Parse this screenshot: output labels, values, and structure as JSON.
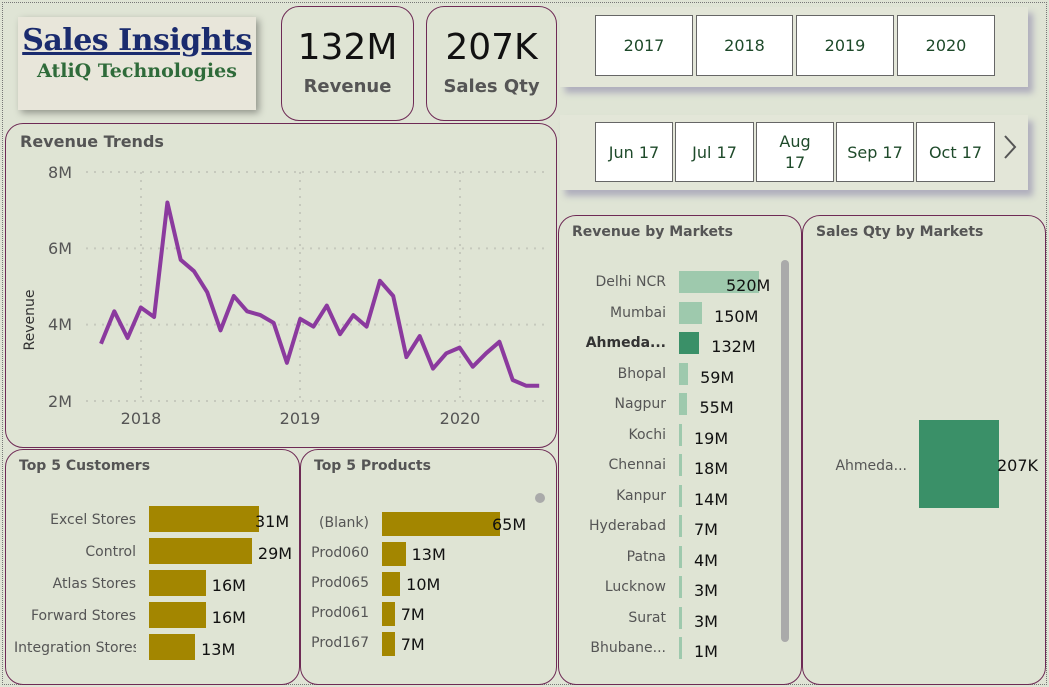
{
  "header": {
    "title": "Sales Insights",
    "subtitle": "AtliQ Technologies"
  },
  "kpis": {
    "revenue": {
      "value": "132M",
      "label": "Revenue"
    },
    "sales_qty": {
      "value": "207K",
      "label": "Sales Qty"
    }
  },
  "year_slicer": [
    "2017",
    "2018",
    "2019",
    "2020"
  ],
  "month_slicer": [
    "Jun 17",
    "Jul 17",
    "Aug 17",
    "Sep 17",
    "Oct 17"
  ],
  "revenue_trends": {
    "title": "Revenue Trends",
    "ylabel": "Revenue",
    "y_ticks": [
      "8M",
      "6M",
      "4M",
      "2M"
    ],
    "x_ticks": [
      "2018",
      "2019",
      "2020"
    ]
  },
  "revenue_by_markets": {
    "title": "Revenue by Markets",
    "rows": [
      {
        "label": "Delhi NCR",
        "value": "520M"
      },
      {
        "label": "Mumbai",
        "value": "150M"
      },
      {
        "label": "Ahmeda...",
        "value": "132M"
      },
      {
        "label": "Bhopal",
        "value": "59M"
      },
      {
        "label": "Nagpur",
        "value": "55M"
      },
      {
        "label": "Kochi",
        "value": "19M"
      },
      {
        "label": "Chennai",
        "value": "18M"
      },
      {
        "label": "Kanpur",
        "value": "14M"
      },
      {
        "label": "Hyderabad",
        "value": "7M"
      },
      {
        "label": "Patna",
        "value": "4M"
      },
      {
        "label": "Lucknow",
        "value": "3M"
      },
      {
        "label": "Surat",
        "value": "3M"
      },
      {
        "label": "Bhubane...",
        "value": "1M"
      }
    ]
  },
  "sales_qty_by_markets": {
    "title": "Sales Qty by Markets",
    "rows": [
      {
        "label": "Ahmeda...",
        "value": "207K"
      }
    ]
  },
  "top_customers": {
    "title": "Top 5 Customers",
    "rows": [
      {
        "label": "Excel Stores",
        "value": "31M"
      },
      {
        "label": "Control",
        "value": "29M"
      },
      {
        "label": "Atlas Stores",
        "value": "16M"
      },
      {
        "label": "Forward Stores",
        "value": "16M"
      },
      {
        "label": "Integration Stores",
        "value": "13M"
      }
    ]
  },
  "top_products": {
    "title": "Top 5 Products",
    "rows": [
      {
        "label": "(Blank)",
        "value": "65M"
      },
      {
        "label": "Prod060",
        "value": "13M"
      },
      {
        "label": "Prod065",
        "value": "10M"
      },
      {
        "label": "Prod061",
        "value": "7M"
      },
      {
        "label": "Prod167",
        "value": "7M"
      }
    ]
  },
  "colors": {
    "line": "#8b3a9e",
    "bar_gold": "#a38600",
    "bar_green": "#3a9068",
    "bar_green_light": "#9ec9ad"
  },
  "chart_data": [
    {
      "type": "line",
      "title": "Revenue Trends",
      "ylabel": "Revenue",
      "ylim": [
        2000000,
        8000000
      ],
      "x": [
        "2017-09",
        "2017-10",
        "2017-11",
        "2017-12",
        "2018-01",
        "2018-02",
        "2018-03",
        "2018-04",
        "2018-05",
        "2018-06",
        "2018-07",
        "2018-08",
        "2018-09",
        "2018-10",
        "2018-11",
        "2018-12",
        "2019-01",
        "2019-02",
        "2019-03",
        "2019-04",
        "2019-05",
        "2019-06",
        "2019-07",
        "2019-08",
        "2019-09",
        "2019-10",
        "2019-11",
        "2019-12",
        "2020-01",
        "2020-02",
        "2020-03",
        "2020-04",
        "2020-05",
        "2020-06"
      ],
      "values": [
        3500000,
        4350000,
        3650000,
        4450000,
        4200000,
        7200000,
        5700000,
        5400000,
        4850000,
        3850000,
        4750000,
        4350000,
        4250000,
        4050000,
        3000000,
        4150000,
        3950000,
        4500000,
        3750000,
        4250000,
        3950000,
        5150000,
        4750000,
        3150000,
        3700000,
        2850000,
        3250000,
        3400000,
        2900000,
        3250000,
        3550000,
        2550000,
        2400000,
        2400000
      ]
    },
    {
      "type": "bar",
      "title": "Revenue by Markets",
      "categories": [
        "Delhi NCR",
        "Mumbai",
        "Ahmeda...",
        "Bhopal",
        "Nagpur",
        "Kochi",
        "Chennai",
        "Kanpur",
        "Hyderabad",
        "Patna",
        "Lucknow",
        "Surat",
        "Bhubane..."
      ],
      "values": [
        520,
        150,
        132,
        59,
        55,
        19,
        18,
        14,
        7,
        4,
        3,
        3,
        1
      ],
      "highlighted": "Ahmeda..."
    },
    {
      "type": "bar",
      "title": "Sales Qty by Markets",
      "categories": [
        "Ahmeda..."
      ],
      "values": [
        207
      ]
    },
    {
      "type": "bar",
      "title": "Top 5 Customers",
      "categories": [
        "Excel Stores",
        "Control",
        "Atlas Stores",
        "Forward Stores",
        "Integration Stores"
      ],
      "values": [
        31,
        29,
        16,
        16,
        13
      ]
    },
    {
      "type": "bar",
      "title": "Top 5 Products",
      "categories": [
        "(Blank)",
        "Prod060",
        "Prod065",
        "Prod061",
        "Prod167"
      ],
      "values": [
        65,
        13,
        10,
        7,
        7
      ]
    }
  ]
}
